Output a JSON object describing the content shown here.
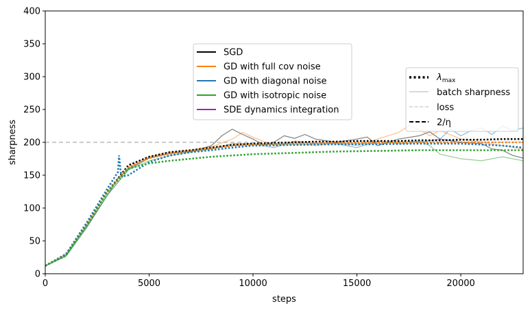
{
  "chart_data": {
    "type": "line",
    "title": "",
    "xlabel": "steps",
    "ylabel": "sharpness",
    "xlim": [
      0,
      23000
    ],
    "ylim": [
      0,
      400
    ],
    "xticks": [
      0,
      5000,
      10000,
      15000,
      20000
    ],
    "xtick_labels": [
      "0",
      "5000",
      "10000",
      "15000",
      "20000"
    ],
    "yticks": [
      0,
      50,
      100,
      150,
      200,
      250,
      300,
      350,
      400
    ],
    "ytick_labels": [
      "0",
      "50",
      "100",
      "150",
      "200",
      "250",
      "300",
      "350",
      "400"
    ],
    "reference_line": {
      "name": "2/η",
      "value": 200
    },
    "series": [
      {
        "name": "SGD",
        "color": "#000000",
        "kind": "lambda_max",
        "x": [
          0,
          1000,
          2000,
          3000,
          4000,
          5000,
          6000,
          7000,
          8000,
          9000,
          10000,
          11000,
          12000,
          13000,
          14000,
          15000,
          16000,
          17000,
          18000,
          19000,
          20000,
          21000,
          22000,
          23000
        ],
        "y": [
          12,
          30,
          75,
          125,
          165,
          178,
          185,
          188,
          192,
          196,
          198,
          199,
          200,
          201,
          201,
          202,
          202,
          202,
          203,
          203,
          204,
          204,
          205,
          205
        ]
      },
      {
        "name": "SGD",
        "color": "#000000",
        "kind": "batch_sharpness",
        "x": [
          0,
          1000,
          2000,
          3000,
          3500,
          4000,
          5000,
          6000,
          7000,
          8000,
          8500,
          9000,
          9500,
          10000,
          10500,
          11000,
          11500,
          12000,
          12500,
          13000,
          14000,
          15000,
          15500,
          16000,
          17000,
          18000,
          18500,
          19000,
          20000,
          21000,
          21500,
          22000,
          22500,
          23000
        ],
        "y": [
          12,
          28,
          72,
          120,
          145,
          160,
          176,
          183,
          186,
          195,
          210,
          220,
          212,
          205,
          196,
          200,
          210,
          206,
          212,
          205,
          200,
          205,
          208,
          195,
          205,
          210,
          216,
          205,
          200,
          198,
          190,
          188,
          180,
          176
        ]
      },
      {
        "name": "GD with full cov noise",
        "color": "#ff7f0e",
        "kind": "lambda_max",
        "x": [
          0,
          1000,
          2000,
          3000,
          4000,
          5000,
          6000,
          7000,
          8000,
          9000,
          10000,
          12000,
          14000,
          16000,
          18000,
          20000,
          22000,
          23000
        ],
        "y": [
          12,
          30,
          75,
          125,
          162,
          176,
          183,
          187,
          191,
          195,
          197,
          198,
          199,
          200,
          200,
          200,
          200,
          200
        ]
      },
      {
        "name": "GD with full cov noise",
        "color": "#ff7f0e",
        "kind": "batch_sharpness",
        "x": [
          0,
          1000,
          2000,
          3000,
          4000,
          5000,
          6000,
          7000,
          8000,
          9000,
          9500,
          10000,
          11000,
          12000,
          13000,
          14000,
          15000,
          16000,
          17000,
          17500,
          18000,
          18500,
          19000,
          20000,
          21000,
          22000,
          23000
        ],
        "y": [
          12,
          30,
          75,
          125,
          162,
          178,
          185,
          188,
          193,
          205,
          215,
          208,
          195,
          200,
          195,
          200,
          195,
          205,
          215,
          225,
          220,
          210,
          218,
          205,
          200,
          195,
          190
        ]
      },
      {
        "name": "GD with diagonal noise",
        "color": "#1f77b4",
        "kind": "lambda_max",
        "x": [
          0,
          1000,
          2000,
          3000,
          3500,
          3550,
          3600,
          3650,
          3700,
          4000,
          5000,
          6000,
          7000,
          8000,
          9000,
          10000,
          12000,
          14000,
          16000,
          18000,
          20000,
          22000,
          23000
        ],
        "y": [
          12,
          30,
          78,
          130,
          155,
          180,
          165,
          150,
          148,
          150,
          170,
          180,
          185,
          188,
          192,
          195,
          196,
          197,
          197,
          198,
          198,
          195,
          192
        ]
      },
      {
        "name": "GD with diagonal noise",
        "color": "#1f77b4",
        "kind": "batch_sharpness",
        "x": [
          0,
          1000,
          2000,
          3000,
          4000,
          5000,
          6000,
          7000,
          8000,
          9000,
          10000,
          11000,
          12000,
          13000,
          14000,
          15000,
          16000,
          17000,
          18000,
          19000,
          19500,
          20000,
          20500,
          21000,
          21500,
          22000,
          22500,
          23000
        ],
        "y": [
          12,
          28,
          72,
          120,
          158,
          176,
          183,
          187,
          190,
          198,
          198,
          192,
          202,
          198,
          198,
          192,
          202,
          198,
          200,
          205,
          220,
          210,
          218,
          222,
          212,
          225,
          218,
          222
        ]
      },
      {
        "name": "GD with isotropic noise",
        "color": "#2ca02c",
        "kind": "lambda_max",
        "x": [
          0,
          1000,
          2000,
          3000,
          4000,
          5000,
          6000,
          7000,
          8000,
          9000,
          10000,
          12000,
          14000,
          16000,
          18000,
          20000,
          22000,
          23000
        ],
        "y": [
          12,
          28,
          75,
          125,
          160,
          168,
          172,
          175,
          178,
          180,
          182,
          184,
          186,
          187,
          188,
          188,
          188,
          188
        ]
      },
      {
        "name": "GD with isotropic noise",
        "color": "#2ca02c",
        "kind": "batch_sharpness",
        "x": [
          0,
          1000,
          2000,
          3000,
          4000,
          5000,
          6000,
          7000,
          8000,
          9000,
          10000,
          12000,
          14000,
          16000,
          17000,
          18000,
          18500,
          19000,
          20000,
          21000,
          22000,
          23000
        ],
        "y": [
          12,
          26,
          70,
          120,
          158,
          172,
          180,
          185,
          190,
          195,
          196,
          197,
          198,
          198,
          200,
          202,
          195,
          182,
          175,
          172,
          178,
          172
        ]
      }
    ],
    "legend_left": {
      "placement": "upper-center",
      "entries": [
        {
          "label": "SGD",
          "color": "#000000"
        },
        {
          "label": "GD with full cov noise",
          "color": "#ff7f0e"
        },
        {
          "label": "GD with diagonal noise",
          "color": "#1f77b4"
        },
        {
          "label": "GD with isotropic noise",
          "color": "#2ca02c"
        },
        {
          "label": "SDE dynamics integration",
          "color": "#9c27b0"
        }
      ]
    },
    "legend_right": {
      "placement": "upper-right",
      "entries": [
        {
          "label_main": "λ",
          "label_sub": "max",
          "style": "dotted-thick"
        },
        {
          "label": "batch sharpness",
          "style": "solid-thin"
        },
        {
          "label": "loss",
          "style": "dashdot-thin"
        },
        {
          "label": "2/η",
          "style": "dashed"
        }
      ]
    }
  }
}
